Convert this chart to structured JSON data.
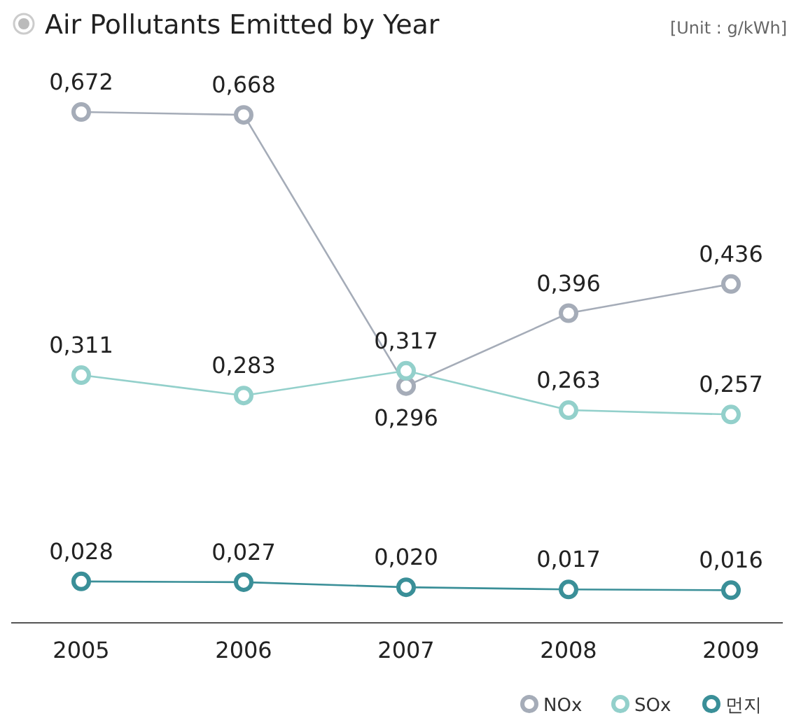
{
  "chart_data": {
    "type": "line",
    "title": "Air Pollutants Emitted by Year",
    "subtitle": "[Unit : g/kWh]",
    "categories": [
      "2005",
      "2006",
      "2007",
      "2008",
      "2009"
    ],
    "series": [
      {
        "name": "NOx",
        "color": "#a5acb8",
        "values": [
          0.672,
          0.668,
          0.296,
          0.396,
          0.436
        ],
        "value_labels": [
          "0,672",
          "0,668",
          "0,296",
          "0,396",
          "0,436"
        ]
      },
      {
        "name": "SOx",
        "color": "#93d0cb",
        "values": [
          0.311,
          0.283,
          0.317,
          0.263,
          0.257
        ],
        "value_labels": [
          "0,311",
          "0,283",
          "0,317",
          "0,263",
          "0,257"
        ]
      },
      {
        "name": "먼지",
        "color": "#3a8f98",
        "values": [
          0.028,
          0.027,
          0.02,
          0.017,
          0.016
        ],
        "value_labels": [
          "0,028",
          "0,027",
          "0,020",
          "0,017",
          "0,016"
        ]
      }
    ],
    "marker": "circle",
    "legend": "bottom right",
    "grid": false
  }
}
